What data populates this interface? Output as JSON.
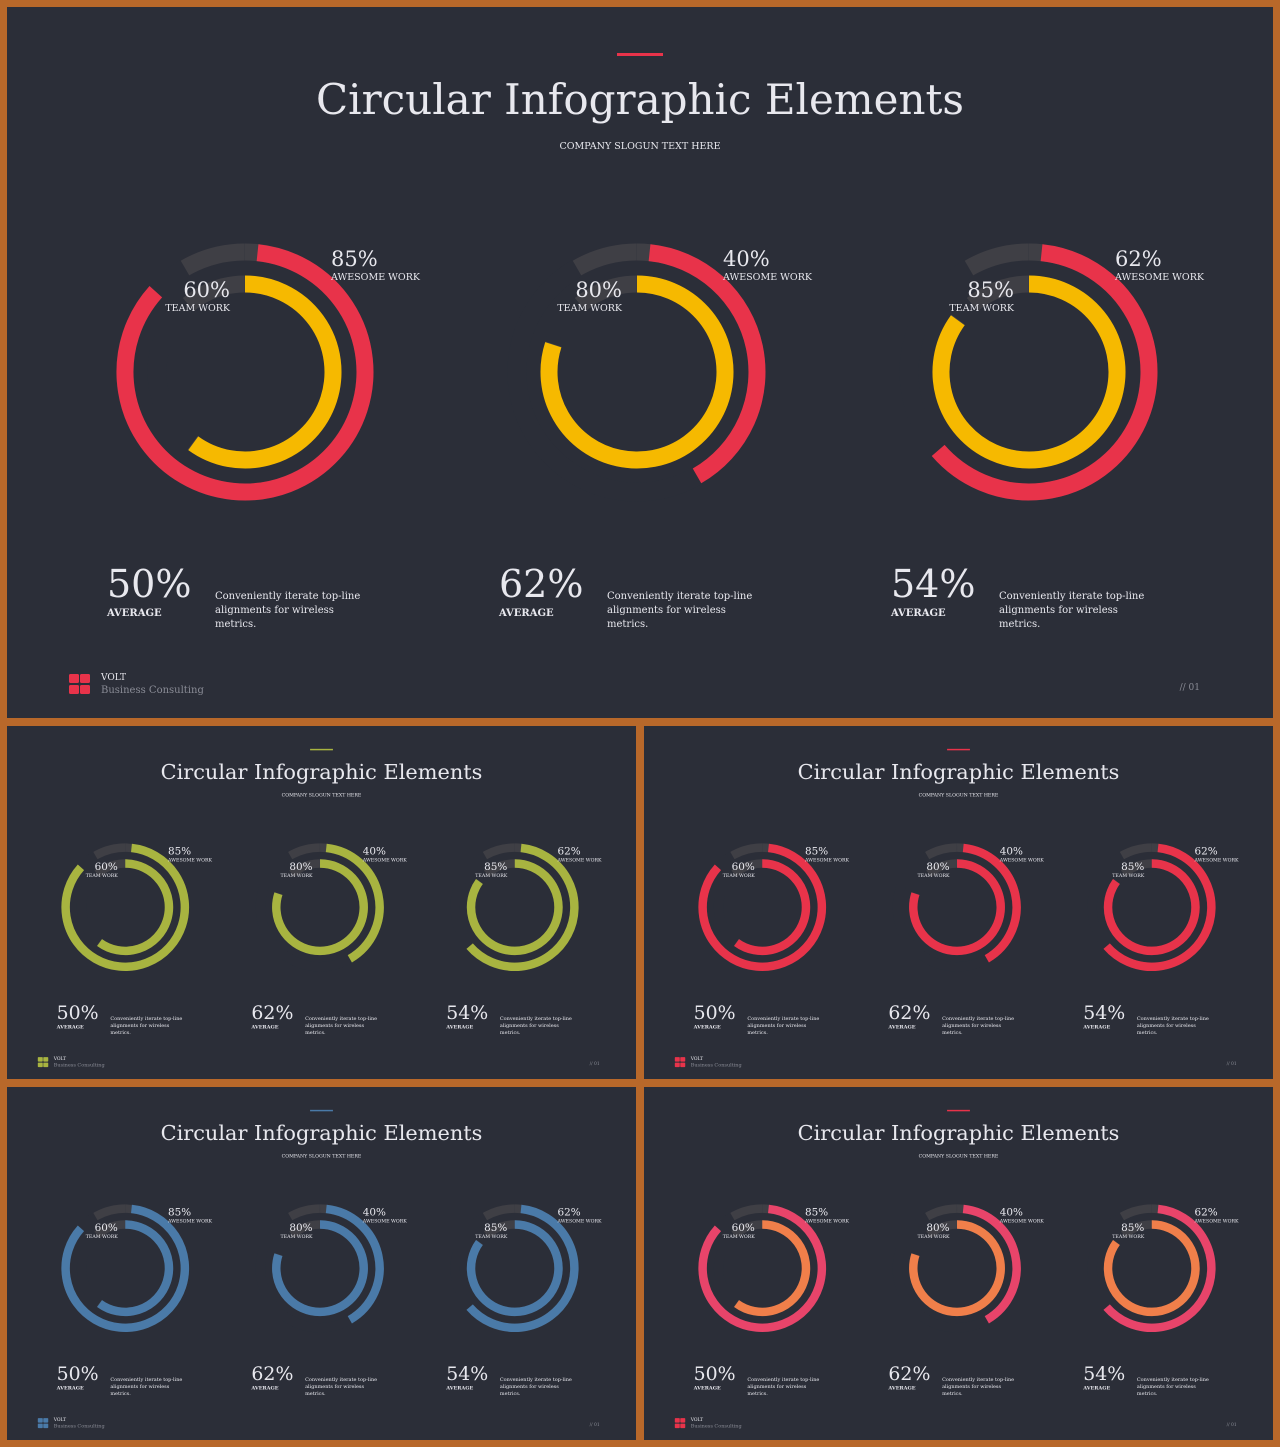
{
  "slides": [
    {
      "title": "Circular Infographic Elements",
      "slogan": "COMPANY SLOGUN TEXT HERE",
      "colors": {
        "accent": "#e8334a",
        "inner": "#f6b900",
        "outer": "#e8334a",
        "track": "#3f3f45"
      },
      "page_number": "// 01",
      "brand": {
        "name": "VOLT",
        "tagline": "Business  Consulting",
        "logo_color": "#e8334a"
      }
    },
    {
      "title": "Circular Infographic Elements",
      "slogan": "COMPANY SLOGUN TEXT HERE",
      "colors": {
        "accent": "#a8b440",
        "inner": "#a8b440",
        "outer": "#a8b440",
        "track": "#3f3f45"
      },
      "page_number": "// 01",
      "brand": {
        "name": "VOLT",
        "tagline": "Business  Consulting",
        "logo_color": "#a8b440"
      }
    },
    {
      "title": "Circular Infographic Elements",
      "slogan": "COMPANY SLOGUN TEXT HERE",
      "colors": {
        "accent": "#e8334a",
        "inner": "#e8334a",
        "outer": "#e8334a",
        "track": "#3f3f45"
      },
      "page_number": "// 01",
      "brand": {
        "name": "VOLT",
        "tagline": "Business  Consulting",
        "logo_color": "#e8334a"
      }
    },
    {
      "title": "Circular Infographic Elements",
      "slogan": "COMPANY SLOGUN TEXT HERE",
      "colors": {
        "accent": "#4a7aa8",
        "inner": "#4a7aa8",
        "outer": "#4a7aa8",
        "track": "#3f3f45"
      },
      "page_number": "// 01",
      "brand": {
        "name": "VOLT",
        "tagline": "Business  Consulting",
        "logo_color": "#4a7aa8"
      }
    },
    {
      "title": "Circular Infographic Elements",
      "slogan": "COMPANY SLOGUN TEXT HERE",
      "colors": {
        "accent": "#e8334a",
        "inner": "#f07f4a",
        "outer": "#e8446a",
        "track": "#3f3f45"
      },
      "page_number": "// 01",
      "brand": {
        "name": "VOLT",
        "tagline": "Business  Consulting",
        "logo_color": "#e8334a"
      }
    }
  ],
  "charts": [
    {
      "inner": {
        "value": 60,
        "display": "60%",
        "label": "TEAM WORK"
      },
      "outer": {
        "value": 85,
        "display": "85%",
        "label": "AWESOME WORK"
      },
      "average": {
        "value": 50,
        "display": "50%",
        "label": "AVERAGE"
      },
      "description": [
        "Conveniently iterate top-line",
        "alignments for wireless",
        "metrics."
      ]
    },
    {
      "inner": {
        "value": 80,
        "display": "80%",
        "label": "TEAM WORK"
      },
      "outer": {
        "value": 40,
        "display": "40%",
        "label": "AWESOME WORK"
      },
      "average": {
        "value": 62,
        "display": "62%",
        "label": "AVERAGE"
      },
      "description": [
        "Conveniently iterate top-line",
        "alignments for wireless",
        "metrics."
      ]
    },
    {
      "inner": {
        "value": 85,
        "display": "85%",
        "label": "TEAM WORK"
      },
      "outer": {
        "value": 62,
        "display": "62%",
        "label": "AWESOME WORK"
      },
      "average": {
        "value": 54,
        "display": "54%",
        "label": "AVERAGE"
      },
      "description": [
        "Conveniently iterate top-line",
        "alignments for wireless",
        "metrics."
      ]
    }
  ],
  "text_color": "#e8e8ee",
  "muted_color": "#8a8c96"
}
